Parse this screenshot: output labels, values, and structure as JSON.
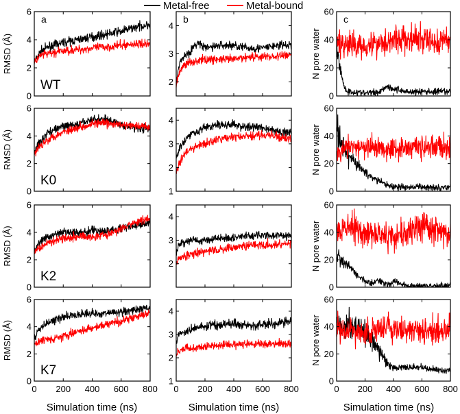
{
  "legend": {
    "metal_free": "Metal-free",
    "metal_bound": "Metal-bound",
    "colors": {
      "metal_free": "#000000",
      "metal_bound": "#ff0000"
    }
  },
  "chart_data": {
    "type": "line",
    "layout": "4x3 grid of panels",
    "grid": false,
    "legend_position": "top-center",
    "column_labels": [
      "a",
      "b",
      "c"
    ],
    "row_labels": [
      "WT",
      "K0",
      "K2",
      "K7"
    ],
    "xlabel": "Simulation time (ns)",
    "xlim": [
      0,
      800
    ],
    "xticks": [
      0,
      200,
      400,
      600,
      800
    ],
    "ylabels": [
      "RMSD (Å)",
      "",
      "N pore water"
    ],
    "panels": [
      {
        "row": "WT",
        "col": "a",
        "ylim": [
          0,
          6
        ],
        "yticks": [
          0,
          2,
          4,
          6
        ],
        "series": [
          {
            "name": "Metal-free",
            "x": [
              0,
              20,
              50,
              100,
              200,
              300,
              400,
              500,
              600,
              700,
              800
            ],
            "y": [
              2.4,
              2.8,
              3.2,
              3.5,
              3.8,
              4.0,
              4.2,
              4.4,
              4.6,
              4.9,
              5.1
            ]
          },
          {
            "name": "Metal-bound",
            "x": [
              0,
              20,
              50,
              100,
              200,
              300,
              400,
              500,
              600,
              700,
              800
            ],
            "y": [
              2.3,
              2.6,
              2.9,
              3.0,
              3.2,
              3.3,
              3.4,
              3.5,
              3.6,
              3.7,
              3.7
            ]
          }
        ]
      },
      {
        "row": "WT",
        "col": "b",
        "ylim": [
          1.5,
          4.5
        ],
        "yticks": [
          2,
          3,
          4
        ],
        "series": [
          {
            "name": "Metal-free",
            "x": [
              0,
              20,
              50,
              100,
              150,
              200,
              300,
              400,
              500,
              600,
              700,
              800
            ],
            "y": [
              2.1,
              2.6,
              2.9,
              3.1,
              3.4,
              3.2,
              3.3,
              3.3,
              3.2,
              3.2,
              3.3,
              3.3
            ]
          },
          {
            "name": "Metal-bound",
            "x": [
              0,
              20,
              50,
              100,
              200,
              300,
              400,
              500,
              600,
              700,
              800
            ],
            "y": [
              1.9,
              2.3,
              2.6,
              2.7,
              2.8,
              2.8,
              2.8,
              2.9,
              2.9,
              2.9,
              3.0
            ]
          }
        ]
      },
      {
        "row": "WT",
        "col": "c",
        "ylim": [
          0,
          60
        ],
        "yticks": [
          0,
          20,
          40,
          60
        ],
        "series": [
          {
            "name": "Metal-free",
            "x": [
              0,
              20,
              40,
              60,
              80,
              100,
              200,
              300,
              350,
              400,
              500,
              600,
              700,
              800
            ],
            "y": [
              36,
              22,
              12,
              5,
              3,
              3,
              2,
              3,
              7,
              5,
              3,
              3,
              3,
              3
            ]
          },
          {
            "name": "Metal-bound",
            "x": [
              0,
              100,
              200,
              300,
              400,
              500,
              600,
              700,
              800
            ],
            "y": [
              38,
              36,
              36,
              38,
              40,
              40,
              40,
              38,
              40
            ]
          }
        ]
      },
      {
        "row": "K0",
        "col": "a",
        "ylim": [
          0,
          6
        ],
        "yticks": [
          0,
          2,
          4,
          6
        ],
        "series": [
          {
            "name": "Metal-free",
            "x": [
              0,
              20,
              50,
              100,
              200,
              300,
              400,
              500,
              600,
              700,
              800
            ],
            "y": [
              2.8,
              3.3,
              3.7,
              4.3,
              4.7,
              4.8,
              5.2,
              5.2,
              4.8,
              4.6,
              4.5
            ]
          },
          {
            "name": "Metal-bound",
            "x": [
              0,
              20,
              50,
              100,
              200,
              300,
              400,
              500,
              600,
              700,
              800
            ],
            "y": [
              2.6,
              3.0,
              3.4,
              3.8,
              4.3,
              4.6,
              4.9,
              4.9,
              4.8,
              4.7,
              4.7
            ]
          }
        ]
      },
      {
        "row": "K0",
        "col": "b",
        "ylim": [
          1,
          4.5
        ],
        "yticks": [
          1,
          2,
          3,
          4
        ],
        "series": [
          {
            "name": "Metal-free",
            "x": [
              0,
              20,
              50,
              100,
              200,
              300,
              400,
              500,
              600,
              700,
              800
            ],
            "y": [
              2.3,
              2.8,
              3.1,
              3.4,
              3.7,
              3.8,
              3.8,
              3.7,
              3.7,
              3.5,
              3.5
            ]
          },
          {
            "name": "Metal-bound",
            "x": [
              0,
              20,
              50,
              100,
              200,
              300,
              400,
              500,
              600,
              700,
              800
            ],
            "y": [
              1.8,
              2.2,
              2.5,
              2.8,
              3.0,
              3.2,
              3.3,
              3.3,
              3.4,
              3.3,
              3.2
            ]
          }
        ]
      },
      {
        "row": "K0",
        "col": "c",
        "ylim": [
          0,
          60
        ],
        "yticks": [
          0,
          20,
          40,
          60
        ],
        "series": [
          {
            "name": "Metal-free",
            "x": [
              0,
              20,
              50,
              100,
              150,
              200,
              250,
              300,
              350,
              400,
              500,
              600,
              700,
              800
            ],
            "y": [
              45,
              38,
              30,
              24,
              18,
              14,
              10,
              7,
              5,
              3,
              3,
              3,
              3,
              3
            ]
          },
          {
            "name": "Metal-bound",
            "x": [
              0,
              50,
              100,
              200,
              300,
              400,
              500,
              600,
              700,
              800
            ],
            "y": [
              30,
              30,
              32,
              31,
              32,
              31,
              32,
              32,
              32,
              32
            ]
          }
        ]
      },
      {
        "row": "K2",
        "col": "a",
        "ylim": [
          0,
          6
        ],
        "yticks": [
          0,
          2,
          4,
          6
        ],
        "series": [
          {
            "name": "Metal-free",
            "x": [
              0,
              20,
              50,
              100,
              200,
              300,
              400,
              500,
              600,
              700,
              800
            ],
            "y": [
              2.6,
              3.0,
              3.4,
              3.7,
              4.0,
              4.0,
              4.1,
              4.1,
              4.3,
              4.5,
              4.7
            ]
          },
          {
            "name": "Metal-bound",
            "x": [
              0,
              20,
              50,
              100,
              200,
              300,
              400,
              500,
              600,
              700,
              800
            ],
            "y": [
              2.4,
              2.8,
              3.0,
              3.3,
              3.6,
              3.7,
              3.7,
              3.8,
              4.3,
              4.7,
              5.0
            ]
          }
        ]
      },
      {
        "row": "K2",
        "col": "b",
        "ylim": [
          1,
          4.5
        ],
        "yticks": [
          2,
          3,
          4
        ],
        "series": [
          {
            "name": "Metal-free",
            "x": [
              0,
              20,
              50,
              100,
              200,
              300,
              400,
              500,
              600,
              700,
              800
            ],
            "y": [
              2.5,
              2.8,
              2.9,
              3.0,
              3.0,
              3.1,
              3.1,
              3.2,
              3.2,
              3.2,
              3.2
            ]
          },
          {
            "name": "Metal-bound",
            "x": [
              0,
              20,
              50,
              100,
              200,
              300,
              400,
              500,
              600,
              700,
              800
            ],
            "y": [
              2.0,
              2.2,
              2.3,
              2.4,
              2.5,
              2.6,
              2.7,
              2.8,
              2.8,
              2.8,
              2.9
            ]
          }
        ]
      },
      {
        "row": "K2",
        "col": "c",
        "ylim": [
          0,
          60
        ],
        "yticks": [
          0,
          20,
          40,
          60
        ],
        "series": [
          {
            "name": "Metal-free",
            "x": [
              0,
              20,
              50,
              100,
              150,
              200,
              250,
              300,
              350,
              400,
              500,
              600,
              700,
              800
            ],
            "y": [
              20,
              22,
              18,
              14,
              8,
              4,
              3,
              5,
              2,
              4,
              1,
              1,
              1,
              1
            ]
          },
          {
            "name": "Metal-bound",
            "x": [
              0,
              100,
              200,
              300,
              400,
              500,
              600,
              700,
              800
            ],
            "y": [
              42,
              44,
              40,
              38,
              38,
              40,
              44,
              42,
              38
            ]
          }
        ]
      },
      {
        "row": "K7",
        "col": "a",
        "ylim": [
          0,
          6
        ],
        "yticks": [
          0,
          2,
          4,
          6
        ],
        "series": [
          {
            "name": "Metal-free",
            "x": [
              0,
              20,
              50,
              100,
              200,
              300,
              400,
              500,
              600,
              700,
              800
            ],
            "y": [
              3.0,
              3.6,
              4.0,
              4.3,
              4.7,
              4.9,
              5.0,
              5.0,
              5.1,
              5.2,
              5.4
            ]
          },
          {
            "name": "Metal-bound",
            "x": [
              0,
              20,
              50,
              100,
              200,
              300,
              400,
              500,
              600,
              700,
              800
            ],
            "y": [
              2.6,
              2.9,
              3.0,
              3.1,
              3.3,
              3.6,
              3.9,
              4.2,
              4.4,
              4.7,
              5.0
            ]
          }
        ]
      },
      {
        "row": "K7",
        "col": "b",
        "ylim": [
          1,
          4.5
        ],
        "yticks": [
          1,
          2,
          3,
          4
        ],
        "series": [
          {
            "name": "Metal-free",
            "x": [
              0,
              20,
              50,
              100,
              200,
              300,
              400,
              500,
              600,
              700,
              800
            ],
            "y": [
              2.6,
              3.0,
              3.1,
              3.2,
              3.4,
              3.4,
              3.5,
              3.4,
              3.4,
              3.5,
              3.6
            ]
          },
          {
            "name": "Metal-bound",
            "x": [
              0,
              20,
              50,
              100,
              200,
              300,
              400,
              500,
              600,
              700,
              800
            ],
            "y": [
              2.2,
              2.3,
              2.4,
              2.4,
              2.5,
              2.5,
              2.6,
              2.6,
              2.6,
              2.6,
              2.6
            ]
          }
        ]
      },
      {
        "row": "K7",
        "col": "c",
        "ylim": [
          0,
          60
        ],
        "yticks": [
          0,
          20,
          40,
          60
        ],
        "series": [
          {
            "name": "Metal-free",
            "x": [
              0,
              50,
              100,
              150,
              200,
              250,
              300,
              350,
              400,
              500,
              600,
              700,
              800
            ],
            "y": [
              42,
              40,
              40,
              38,
              36,
              32,
              22,
              14,
              10,
              10,
              10,
              8,
              8
            ]
          },
          {
            "name": "Metal-bound",
            "x": [
              0,
              50,
              100,
              200,
              300,
              400,
              500,
              600,
              700,
              800
            ],
            "y": [
              40,
              37,
              37,
              37,
              38,
              38,
              37,
              37,
              38,
              38
            ]
          }
        ]
      }
    ]
  }
}
